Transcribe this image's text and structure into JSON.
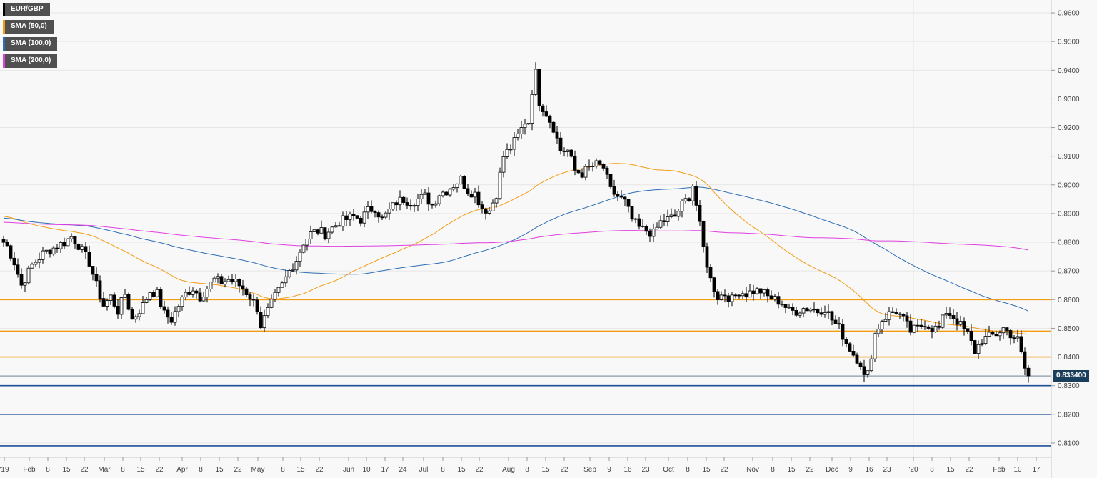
{
  "chart_data": {
    "type": "candlestick",
    "symbol": "EUR/GBP",
    "title": "",
    "xlabel": "",
    "ylabel": "",
    "ylim": [
      0.805,
      0.9645
    ],
    "grid": true,
    "y_ticks": [
      "0.9600",
      "0.9500",
      "0.9400",
      "0.9300",
      "0.9200",
      "0.9100",
      "0.9000",
      "0.8900",
      "0.8800",
      "0.8700",
      "0.8600",
      "0.8500",
      "0.8400",
      "0.8300",
      "0.8200",
      "0.8100"
    ],
    "x_ticks": [
      "'19",
      "Feb",
      "8",
      "15",
      "22",
      "Mar",
      "8",
      "15",
      "22",
      "Apr",
      "8",
      "15",
      "22",
      "May",
      "8",
      "15",
      "22",
      "Jun",
      "10",
      "17",
      "24",
      "Jul",
      "8",
      "15",
      "22",
      "Aug",
      "8",
      "15",
      "22",
      "Sep",
      "9",
      "16",
      "23",
      "Oct",
      "8",
      "15",
      "22",
      "Nov",
      "8",
      "15",
      "22",
      "Dec",
      "9",
      "16",
      "23",
      "'20",
      "8",
      "15",
      "22",
      "Feb",
      "10",
      "17"
    ],
    "legend": [
      {
        "name": "EUR/GBP",
        "color": "#000000"
      },
      {
        "name": "SMA (50,0)",
        "color": "#f39c12"
      },
      {
        "name": "SMA (100,0)",
        "color": "#2e6db4"
      },
      {
        "name": "SMA (200,0)",
        "color": "#e040e0"
      }
    ],
    "last_price": "0.833400",
    "last_value": 0.8334,
    "resistance_levels": [
      0.86,
      0.849,
      0.84
    ],
    "support_levels": [
      0.83,
      0.82,
      0.809
    ],
    "close_series": [
      {
        "x": 0.5,
        "v": 0.88
      },
      {
        "x": 3,
        "v": 0.873
      },
      {
        "x": 5,
        "v": 0.865
      },
      {
        "x": 8,
        "v": 0.872
      },
      {
        "x": 11,
        "v": 0.876
      },
      {
        "x": 14,
        "v": 0.878
      },
      {
        "x": 17,
        "v": 0.88
      },
      {
        "x": 19,
        "v": 0.882
      },
      {
        "x": 21,
        "v": 0.879
      },
      {
        "x": 24,
        "v": 0.873
      },
      {
        "x": 26,
        "v": 0.865
      },
      {
        "x": 28,
        "v": 0.858
      },
      {
        "x": 30,
        "v": 0.861
      },
      {
        "x": 32,
        "v": 0.856
      },
      {
        "x": 34,
        "v": 0.862
      },
      {
        "x": 36,
        "v": 0.853
      },
      {
        "x": 39,
        "v": 0.858
      },
      {
        "x": 41,
        "v": 0.863
      },
      {
        "x": 43,
        "v": 0.862
      },
      {
        "x": 45,
        "v": 0.855
      },
      {
        "x": 47,
        "v": 0.853
      },
      {
        "x": 49,
        "v": 0.858
      },
      {
        "x": 51,
        "v": 0.862
      },
      {
        "x": 53,
        "v": 0.864
      },
      {
        "x": 55,
        "v": 0.861
      },
      {
        "x": 57,
        "v": 0.864
      },
      {
        "x": 59,
        "v": 0.867
      },
      {
        "x": 61,
        "v": 0.866
      },
      {
        "x": 63,
        "v": 0.867
      },
      {
        "x": 65,
        "v": 0.866
      },
      {
        "x": 67,
        "v": 0.864
      },
      {
        "x": 69,
        "v": 0.861
      },
      {
        "x": 71,
        "v": 0.857
      },
      {
        "x": 72,
        "v": 0.851
      },
      {
        "x": 74,
        "v": 0.856
      },
      {
        "x": 76,
        "v": 0.861
      },
      {
        "x": 78,
        "v": 0.865
      },
      {
        "x": 80,
        "v": 0.87
      },
      {
        "x": 82,
        "v": 0.874
      },
      {
        "x": 84,
        "v": 0.88
      },
      {
        "x": 86,
        "v": 0.883
      },
      {
        "x": 88,
        "v": 0.884
      },
      {
        "x": 90,
        "v": 0.883
      },
      {
        "x": 92,
        "v": 0.885
      },
      {
        "x": 94,
        "v": 0.887
      },
      {
        "x": 96,
        "v": 0.888
      },
      {
        "x": 98,
        "v": 0.889
      },
      {
        "x": 100,
        "v": 0.888
      },
      {
        "x": 102,
        "v": 0.891
      },
      {
        "x": 104,
        "v": 0.892
      },
      {
        "x": 106,
        "v": 0.888
      },
      {
        "x": 108,
        "v": 0.891
      },
      {
        "x": 110,
        "v": 0.894
      },
      {
        "x": 112,
        "v": 0.895
      },
      {
        "x": 114,
        "v": 0.894
      },
      {
        "x": 116,
        "v": 0.895
      },
      {
        "x": 118,
        "v": 0.896
      },
      {
        "x": 120,
        "v": 0.893
      },
      {
        "x": 122,
        "v": 0.897
      },
      {
        "x": 124,
        "v": 0.898
      },
      {
        "x": 126,
        "v": 0.9
      },
      {
        "x": 128,
        "v": 0.902
      },
      {
        "x": 130,
        "v": 0.898
      },
      {
        "x": 132,
        "v": 0.897
      },
      {
        "x": 134,
        "v": 0.892
      },
      {
        "x": 136,
        "v": 0.891
      },
      {
        "x": 138,
        "v": 0.897
      },
      {
        "x": 140,
        "v": 0.91
      },
      {
        "x": 142,
        "v": 0.913
      },
      {
        "x": 144,
        "v": 0.917
      },
      {
        "x": 146,
        "v": 0.922
      },
      {
        "x": 147,
        "v": 0.922
      },
      {
        "x": 148,
        "v": 0.933
      },
      {
        "x": 149,
        "v": 0.939
      },
      {
        "x": 150,
        "v": 0.929
      },
      {
        "x": 152,
        "v": 0.925
      },
      {
        "x": 154,
        "v": 0.92
      },
      {
        "x": 156,
        "v": 0.912
      },
      {
        "x": 158,
        "v": 0.912
      },
      {
        "x": 160,
        "v": 0.905
      },
      {
        "x": 162,
        "v": 0.904
      },
      {
        "x": 164,
        "v": 0.906
      },
      {
        "x": 166,
        "v": 0.907
      },
      {
        "x": 168,
        "v": 0.906
      },
      {
        "x": 170,
        "v": 0.898
      },
      {
        "x": 172,
        "v": 0.896
      },
      {
        "x": 174,
        "v": 0.894
      },
      {
        "x": 176,
        "v": 0.888
      },
      {
        "x": 178,
        "v": 0.885
      },
      {
        "x": 180,
        "v": 0.884
      },
      {
        "x": 182,
        "v": 0.883
      },
      {
        "x": 184,
        "v": 0.887
      },
      {
        "x": 186,
        "v": 0.888
      },
      {
        "x": 188,
        "v": 0.889
      },
      {
        "x": 190,
        "v": 0.893
      },
      {
        "x": 192,
        "v": 0.896
      },
      {
        "x": 193,
        "v": 0.9
      },
      {
        "x": 194,
        "v": 0.893
      },
      {
        "x": 196,
        "v": 0.878
      },
      {
        "x": 198,
        "v": 0.867
      },
      {
        "x": 200,
        "v": 0.861
      },
      {
        "x": 202,
        "v": 0.862
      },
      {
        "x": 204,
        "v": 0.86
      },
      {
        "x": 206,
        "v": 0.863
      },
      {
        "x": 208,
        "v": 0.862
      },
      {
        "x": 210,
        "v": 0.863
      },
      {
        "x": 212,
        "v": 0.863
      },
      {
        "x": 214,
        "v": 0.861
      },
      {
        "x": 216,
        "v": 0.86
      },
      {
        "x": 218,
        "v": 0.859
      },
      {
        "x": 220,
        "v": 0.856
      },
      {
        "x": 222,
        "v": 0.856
      },
      {
        "x": 224,
        "v": 0.857
      },
      {
        "x": 226,
        "v": 0.857
      },
      {
        "x": 228,
        "v": 0.856
      },
      {
        "x": 230,
        "v": 0.857
      },
      {
        "x": 232,
        "v": 0.853
      },
      {
        "x": 234,
        "v": 0.85
      },
      {
        "x": 236,
        "v": 0.845
      },
      {
        "x": 238,
        "v": 0.841
      },
      {
        "x": 240,
        "v": 0.838
      },
      {
        "x": 241,
        "v": 0.833
      },
      {
        "x": 242,
        "v": 0.834
      },
      {
        "x": 244,
        "v": 0.848
      },
      {
        "x": 246,
        "v": 0.853
      },
      {
        "x": 248,
        "v": 0.855
      },
      {
        "x": 250,
        "v": 0.856
      },
      {
        "x": 252,
        "v": 0.853
      },
      {
        "x": 254,
        "v": 0.849
      },
      {
        "x": 256,
        "v": 0.85
      },
      {
        "x": 258,
        "v": 0.852
      },
      {
        "x": 260,
        "v": 0.85
      },
      {
        "x": 262,
        "v": 0.85
      },
      {
        "x": 264,
        "v": 0.856
      },
      {
        "x": 266,
        "v": 0.854
      },
      {
        "x": 268,
        "v": 0.851
      },
      {
        "x": 270,
        "v": 0.848
      },
      {
        "x": 272,
        "v": 0.842
      },
      {
        "x": 274,
        "v": 0.846
      },
      {
        "x": 276,
        "v": 0.847
      },
      {
        "x": 278,
        "v": 0.848
      },
      {
        "x": 280,
        "v": 0.85
      },
      {
        "x": 282,
        "v": 0.848
      },
      {
        "x": 284,
        "v": 0.846
      },
      {
        "x": 286,
        "v": 0.836
      },
      {
        "x": 287,
        "v": 0.8334
      }
    ]
  }
}
